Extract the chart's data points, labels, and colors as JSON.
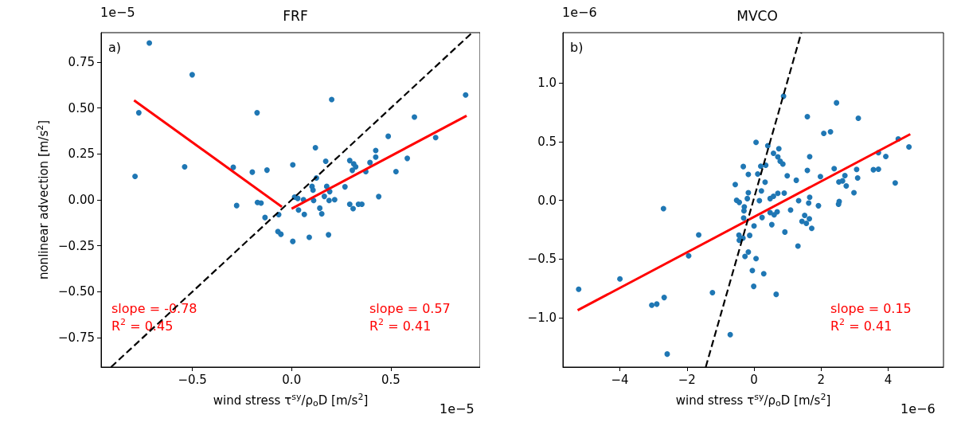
{
  "chart_data": [
    {
      "type": "scatter",
      "title": "FRF",
      "xlabel": "wind stress τ$^{sy}$/ρ$_{o}$D [m/s$^{2}$]",
      "ylabel": "nonlinear advection [m/s$^{2}$]",
      "annotations": [
        "a)",
        "slope = -0.78\nR$^{2}$ = 0.45",
        "slope = 0.57\nR$^{2}$ = 0.41",
        "1e−5",
        "1e−5"
      ],
      "xlim": [
        -0.96,
        0.95
      ],
      "ylim": [
        -0.91,
        0.91
      ],
      "xticks": [
        {
          "value": -0.5,
          "label": "−0.5"
        },
        {
          "value": 0,
          "label": "0.0"
        },
        0.5
      ],
      "yticks": [
        {
          "value": -0.75,
          "label": "−0.75"
        },
        {
          "value": -0.5,
          "label": "−0.50"
        },
        {
          "value": -0.25,
          "label": "−0.25"
        },
        {
          "value": 0,
          "label": "0.00"
        },
        0.25,
        {
          "value": 0.5,
          "label": "0.50"
        },
        0.75
      ],
      "grid": false,
      "series": [
        {
          "marker": "circle",
          "color": "#1f77b4",
          "x": [
            -0.717,
            -0.501,
            -0.77,
            -0.789,
            -0.539,
            -0.174,
            0.202,
            0.877,
            0.619,
            0.487,
            0.726,
            0.12,
            0.424,
            0.424,
            0.583,
            0.172,
            0.293,
            0.313,
            0.323,
            0.306,
            0.395,
            0.374,
            0.526,
            -0.294,
            -0.198,
            -0.124,
            0.006,
            0.125,
            0.103,
            0.108,
            0.177,
            0.192,
            0.165,
            0.269,
            0.439,
            0.015,
            0.031,
            0.06,
            0.111,
            0.189,
            0.217,
            0.293,
            0.337,
            0.354,
            -0.277,
            -0.172,
            -0.154,
            0.035,
            0.064,
            0.142,
            0.152,
            0.31,
            -0.134,
            -0.065,
            -0.069,
            -0.054,
            0.006,
            0.089,
            0.186
          ],
          "values": [
            0.854,
            0.681,
            0.474,
            0.128,
            0.18,
            0.474,
            0.546,
            0.571,
            0.451,
            0.346,
            0.339,
            0.284,
            0.269,
            0.233,
            0.226,
            0.21,
            0.214,
            0.196,
            0.18,
            0.161,
            0.203,
            0.154,
            0.154,
            0.177,
            0.151,
            0.162,
            0.191,
            0.119,
            0.073,
            0.053,
            0.073,
            0.045,
            0.019,
            0.071,
            0.018,
            0.015,
            0.008,
            0.001,
            -0.003,
            -0.003,
            0.001,
            -0.024,
            -0.024,
            -0.024,
            -0.031,
            -0.014,
            -0.017,
            -0.055,
            -0.079,
            -0.045,
            -0.076,
            -0.048,
            -0.096,
            -0.08,
            -0.172,
            -0.187,
            -0.226,
            -0.204,
            -0.19
          ]
        },
        {
          "type": "line",
          "color": "#ff0000",
          "line_style": "solid",
          "x": [
            -0.794,
            -0.049
          ],
          "values": [
            0.542,
            -0.038
          ]
        },
        {
          "type": "line",
          "color": "#ff0000",
          "line_style": "solid",
          "x": [
            0,
            0.882
          ],
          "values": [
            -0.048,
            0.458
          ]
        },
        {
          "type": "line",
          "color": "#000000",
          "line_style": "dashed",
          "x": [
            -0.91,
            0.91
          ],
          "values": [
            -0.91,
            0.91
          ]
        }
      ]
    },
    {
      "type": "scatter",
      "title": "MVCO",
      "xlabel": "wind stress τ$^{sy}$/ρ$_{o}$D [m/s$^{2}$]",
      "annotations": [
        "b)",
        "slope = 0.15\nR$^{2}$ = 0.41",
        "1e−6",
        "1e−6"
      ],
      "xlim": [
        -5.7,
        5.65
      ],
      "ylim": [
        -1.42,
        1.43
      ],
      "xticks": [
        {
          "value": -4,
          "label": "−4"
        },
        {
          "value": -2,
          "label": "−2"
        },
        0,
        2,
        4
      ],
      "yticks": [
        {
          "value": -1,
          "label": "−1.0"
        },
        {
          "value": -0.5,
          "label": "−0.5"
        },
        {
          "value": 0,
          "label": "0.0"
        },
        0.5,
        {
          "value": 1,
          "label": "1.0"
        }
      ],
      "grid": false,
      "series": [
        {
          "marker": "circle",
          "color": "#1f77b4",
          "x": [
            0.88,
            2.46,
            1.59,
            3.11,
            2.08,
            2.28,
            0.06,
            0.41,
            0.74,
            0.58,
            0.71,
            0.78,
            0.86,
            1.66,
            4.3,
            4.62,
            3.71,
            3.93,
            -0.32,
            0.2,
            0.35,
            -0.17,
            0.11,
            0.99,
            1.59,
            2.39,
            3.06,
            3.56,
            3.71,
            1.98,
            1.26,
            2.71,
            2.53,
            2.64,
            2.75,
            3.09,
            4.21,
            2.98,
            -0.56,
            0.33,
            0.22,
            -0.17,
            -0.2,
            -0.52,
            -0.44,
            0.16,
            0.48,
            0.58,
            0.71,
            0.9,
            1.33,
            1.66,
            1.63,
            1.92,
            2.54,
            2.52,
            -2.7,
            -0.29,
            -0.3,
            -0.31,
            0,
            0.24,
            0.48,
            0.6,
            0.69,
            0.53,
            1.09,
            0.92,
            1.51,
            1.65,
            1.43,
            1.56,
            1.72,
            1.31,
            -0.45,
            -0.44,
            -0.33,
            -0.13,
            -0.27,
            -0.17,
            0.06,
            -0.05,
            0.29,
            -0.01,
            0.66,
            -1.65,
            -1.95,
            -4,
            -5.23,
            -2.68,
            -3.05,
            -2.9,
            -1.24,
            -0.71,
            -2.59
          ],
          "values": [
            0.888,
            0.832,
            0.714,
            0.7,
            0.572,
            0.585,
            0.495,
            0.466,
            0.441,
            0.402,
            0.371,
            0.334,
            0.31,
            0.373,
            0.524,
            0.456,
            0.407,
            0.375,
            0.289,
            0.292,
            0.3,
            0.222,
            0.226,
            0.21,
            0.256,
            0.271,
            0.264,
            0.262,
            0.266,
            0.203,
            0.172,
            0.212,
            0.158,
            0.167,
            0.124,
            0.192,
            0.149,
            0.066,
            0.136,
            0.156,
            0.081,
            0.066,
            0.016,
            0.002,
            -0.016,
            -0.002,
            0.016,
            0.036,
            0.061,
            0.063,
            -0.002,
            0.027,
            -0.022,
            -0.045,
            -0.009,
            -0.032,
            -0.07,
            -0.054,
            -0.088,
            -0.149,
            -0.217,
            -0.145,
            -0.104,
            -0.122,
            -0.097,
            -0.206,
            -0.081,
            -0.269,
            -0.127,
            -0.156,
            -0.178,
            -0.195,
            -0.237,
            -0.389,
            -0.296,
            -0.339,
            -0.321,
            -0.298,
            -0.477,
            -0.439,
            -0.495,
            -0.597,
            -0.624,
            -0.732,
            -0.8,
            -0.294,
            -0.472,
            -0.669,
            -0.757,
            -0.827,
            -0.893,
            -0.883,
            -0.786,
            -1.144,
            -1.309
          ]
        },
        {
          "type": "line",
          "color": "#ff0000",
          "line_style": "solid",
          "x": [
            -5.26,
            4.66
          ],
          "values": [
            -0.936,
            0.565
          ]
        },
        {
          "type": "line",
          "color": "#000000",
          "line_style": "dashed",
          "x": [
            -1.44,
            1.41
          ],
          "values": [
            -1.42,
            1.43
          ]
        }
      ]
    }
  ]
}
